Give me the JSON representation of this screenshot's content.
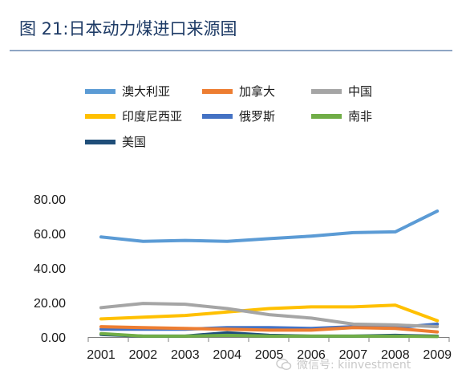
{
  "figure": {
    "title": "图 21:日本动力煤进口来源国"
  },
  "watermark": {
    "text": "微信号: kiinvestment",
    "icon": "wechat-icon"
  },
  "chart_data": {
    "type": "line",
    "title": "",
    "xlabel": "",
    "ylabel": "",
    "x": [
      "2001",
      "2002",
      "2003",
      "2004",
      "2005",
      "2006",
      "2007",
      "2008",
      "2009"
    ],
    "ylim": [
      0,
      80
    ],
    "yticks": [
      "0.00",
      "20.00",
      "40.00",
      "60.00",
      "80.00"
    ],
    "grid": false,
    "legend_position": "top",
    "series": [
      {
        "name": "澳大利亚",
        "color": "#5b9bd5",
        "values": [
          58,
          55.5,
          56,
          55.5,
          57,
          58.5,
          60.5,
          61,
          73
        ]
      },
      {
        "name": "加拿大",
        "color": "#ed7d31",
        "values": [
          6,
          5.5,
          5,
          4.5,
          4,
          4,
          5.5,
          5,
          3
        ]
      },
      {
        "name": "中国",
        "color": "#a5a5a5",
        "values": [
          17,
          19.5,
          19,
          16.5,
          13,
          11,
          7.5,
          7,
          6
        ]
      },
      {
        "name": "印度尼西亚",
        "color": "#ffc000",
        "values": [
          10.5,
          11.5,
          12.5,
          14.5,
          16.5,
          17.5,
          17.5,
          18.5,
          9.5
        ]
      },
      {
        "name": "俄罗斯",
        "color": "#4472c4",
        "values": [
          4.5,
          4.5,
          4.5,
          5.5,
          5.5,
          5,
          6,
          5.5,
          7.5
        ]
      },
      {
        "name": "南非",
        "color": "#70ad47",
        "values": [
          2,
          0.5,
          0.5,
          1,
          0.5,
          0.5,
          0.5,
          0.5,
          0.3
        ]
      },
      {
        "name": "美国",
        "color": "#1f4e79",
        "values": [
          1.5,
          0.5,
          0.5,
          2.5,
          1,
          0.5,
          0.5,
          1,
          0.5
        ]
      }
    ]
  }
}
